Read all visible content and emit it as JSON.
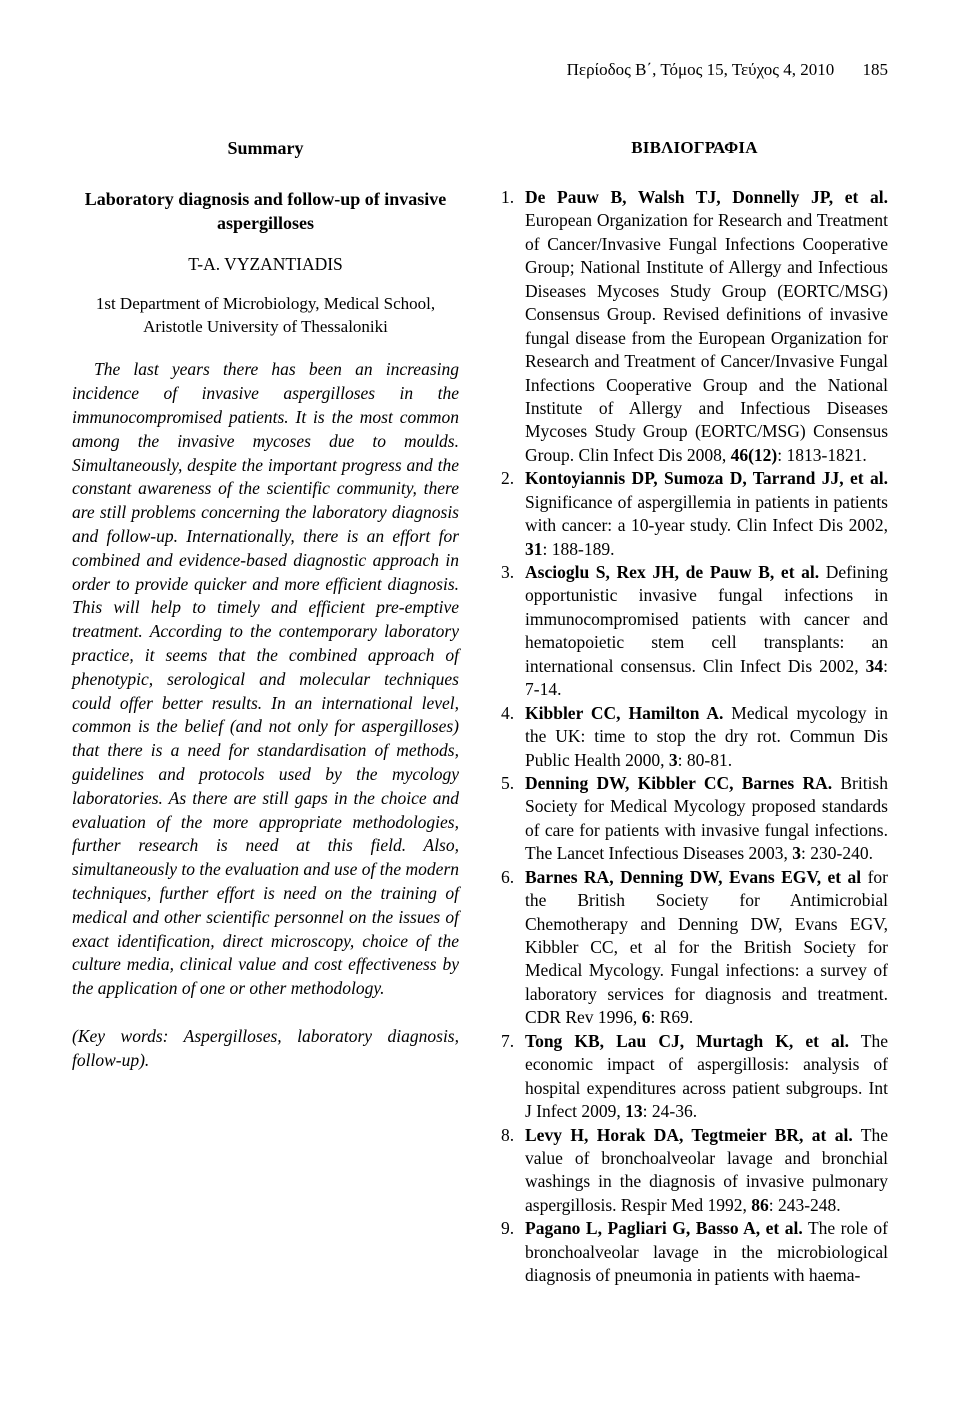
{
  "header": {
    "journal_issue": "Περίοδος Β΄, Τόμος 15, Τεύχος 4, 2010",
    "page_number": "185"
  },
  "summary": {
    "label": "Summary",
    "title": "Laboratory diagnosis and follow-up of invasive aspergilloses",
    "author": "T-A. VYZANTIADIS",
    "affiliation": "1st Department of Microbiology, Medical School, Aristotle University of Thessaloniki",
    "abstract": "The last years there has been an increasing incidence of invasive aspergilloses in the immunocompromised patients. It is the most common among the invasive mycoses due to moulds. Simultaneously, despite the important progress and the constant awareness of the scientific community, there are still problems concerning the laboratory diagnosis and follow-up. Internationally, there is an effort for combined and evidence-based diagnostic approach in order to provide quicker and more efficient diagnosis. This will help to timely and efficient pre-emptive treatment. According to the contemporary laboratory practice, it seems that the combined approach of phenotypic, serological and molecular techniques could offer better results. In an international level, common is the belief (and not only for aspergilloses) that there is a need for standardisation of methods, guidelines and protocols used by the mycology laboratories. As there are still gaps in the choice and evaluation of the more appropriate methodologies, further research is need at this field. Also, simultaneously to the evaluation and use of the modern techniques, further effort is need on the training of medical and other scientific personnel on the issues of exact identification, direct microscopy, choice of the culture media, clinical value and cost effectiveness by the application of one or other methodology.",
    "keywords": "(Key words: Aspergilloses, laboratory diagnosis, follow-up)."
  },
  "bibliography": {
    "label": "ΒΙΒΛΙΟΓΡΑΦΙΑ",
    "refs": [
      {
        "num": "1.",
        "authors": "De Pauw B, Walsh TJ, Donnelly JP, et al.",
        "rest_before_vol": " European Organization for Research and Treatment of Cancer/Invasive Fungal Infections Cooperative Group; National Institute of Allergy and Infectious Diseases Mycoses Study Group (EORTC/MSG) Consensus Group. Revised definitions of invasive fungal disease from the European Organization for Research and Treatment of Cancer/Invasive Fungal Infections Cooperative Group and the National Institute of Allergy and Infectious Diseases Mycoses Study Group (EORTC/MSG) Consensus Group. Clin Infect Dis 2008, ",
        "vol": "46(12)",
        "rest_after_vol": ": 1813-1821."
      },
      {
        "num": "2.",
        "authors": "Kontoyiannis DP, Sumoza D, Tarrand JJ, et al.",
        "rest_before_vol": " Significance of aspergillemia in patients in patients with cancer: a 10-year study. Clin Infect Dis 2002, ",
        "vol": "31",
        "rest_after_vol": ": 188-189."
      },
      {
        "num": "3.",
        "authors": "Ascioglu S, Rex JH, de Pauw B, et al.",
        "rest_before_vol": " Defining opportunistic invasive fungal infections in immunocompromised patients with cancer and hematopoietic stem cell transplants: an international consensus. Clin Infect Dis 2002, ",
        "vol": "34",
        "rest_after_vol": ": 7-14."
      },
      {
        "num": "4.",
        "authors": "Kibbler CC, Hamilton A.",
        "rest_before_vol": " Medical mycology in the UK: time to stop the dry rot. Commun Dis Public Health 2000, ",
        "vol": "3",
        "rest_after_vol": ": 80-81."
      },
      {
        "num": "5.",
        "authors": "Denning DW, Kibbler CC, Barnes RA.",
        "rest_before_vol": " British Society for Medical Mycology proposed standards of care for patients with invasive fungal infections. The Lancet Infectious Diseases 2003, ",
        "vol": "3",
        "rest_after_vol": ": 230-240."
      },
      {
        "num": "6.",
        "authors": "Barnes RA, Denning DW, Evans EGV, et al",
        "rest_before_vol": " for the British Society for Antimicrobial Chemotherapy and Denning DW, Evans EGV, Kibbler CC, et al for the British Society for Medical Mycology. Fungal infections: a survey of laboratory services for diagnosis and treatment. CDR Rev 1996, ",
        "vol": "6",
        "rest_after_vol": ": R69."
      },
      {
        "num": "7.",
        "authors": "Tong KB, Lau CJ, Murtagh K, et al.",
        "rest_before_vol": " The economic impact of aspergillosis: analysis of hospital expenditures across patient subgroups. Int J Infect 2009, ",
        "vol": "13",
        "rest_after_vol": ": 24-36."
      },
      {
        "num": "8.",
        "authors": "Levy H, Horak DA, Tegtmeier BR, at al.",
        "rest_before_vol": " The value of bronchoalveolar lavage and bronchial washings in the diagnosis of invasive pulmonary aspergillosis. Respir Med 1992, ",
        "vol": "86",
        "rest_after_vol": ": 243-248."
      },
      {
        "num": "9.",
        "authors": "Pagano L, Pagliari G, Basso A, et al.",
        "rest_before_vol": " The role of bronchoalveolar lavage in the microbiological diagnosis of pneumonia in patients with haema-",
        "vol": "",
        "rest_after_vol": ""
      }
    ]
  }
}
